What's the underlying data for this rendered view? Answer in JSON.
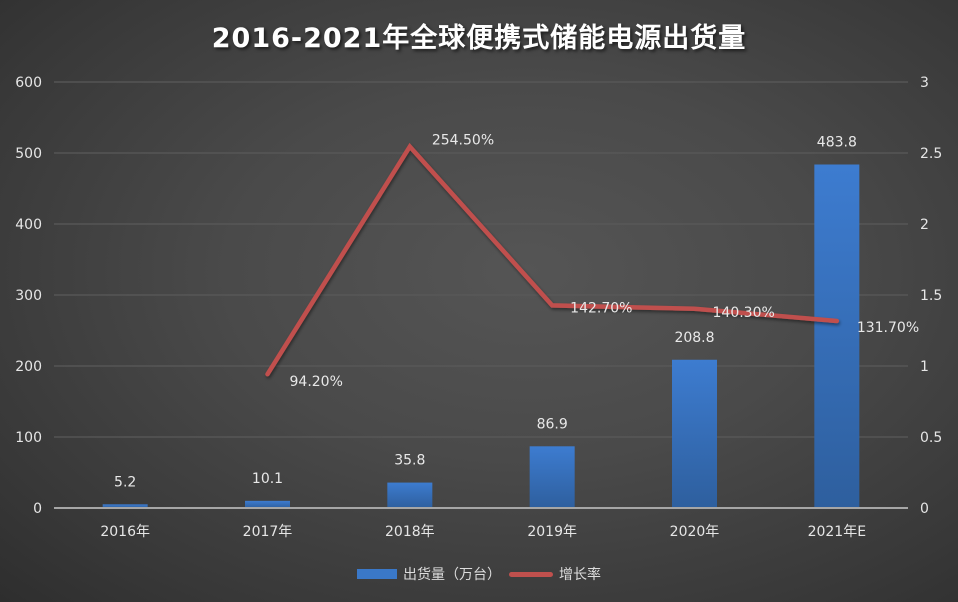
{
  "title": "2016-2021年全球便携式储能电源出货量",
  "legend": {
    "bar_label": "出货量（万台）",
    "line_label": "增长率"
  },
  "colors": {
    "bar": "#3a78c8",
    "line": "#c0504d",
    "grid": "#5a5a5a",
    "axis": "#a6a6a6"
  },
  "axes": {
    "left_ticks": [
      "0",
      "100",
      "200",
      "300",
      "400",
      "500",
      "600"
    ],
    "right_ticks": [
      "0",
      "0.5",
      "1",
      "1.5",
      "2",
      "2.5",
      "3"
    ]
  },
  "chart_data": {
    "type": "bar+line",
    "title": "2016-2021年全球便携式储能电源出货量",
    "categories": [
      "2016年",
      "2017年",
      "2018年",
      "2019年",
      "2020年",
      "2021年E"
    ],
    "series": [
      {
        "name": "出货量（万台）",
        "type": "bar",
        "axis": "left",
        "values": [
          5.2,
          10.1,
          35.8,
          86.9,
          208.8,
          483.8
        ],
        "labels": [
          "5.2",
          "10.1",
          "35.8",
          "86.9",
          "208.8",
          "483.8"
        ]
      },
      {
        "name": "增长率",
        "type": "line",
        "axis": "right",
        "values": [
          null,
          0.942,
          2.545,
          1.427,
          1.403,
          1.317
        ],
        "labels": [
          "",
          "94.20%",
          "254.50%",
          "142.70%",
          "140.30%",
          "131.70%"
        ]
      }
    ],
    "ylim_left": [
      0,
      600
    ],
    "ylim_right": [
      0,
      3
    ],
    "grid": true,
    "legend_position": "bottom"
  }
}
